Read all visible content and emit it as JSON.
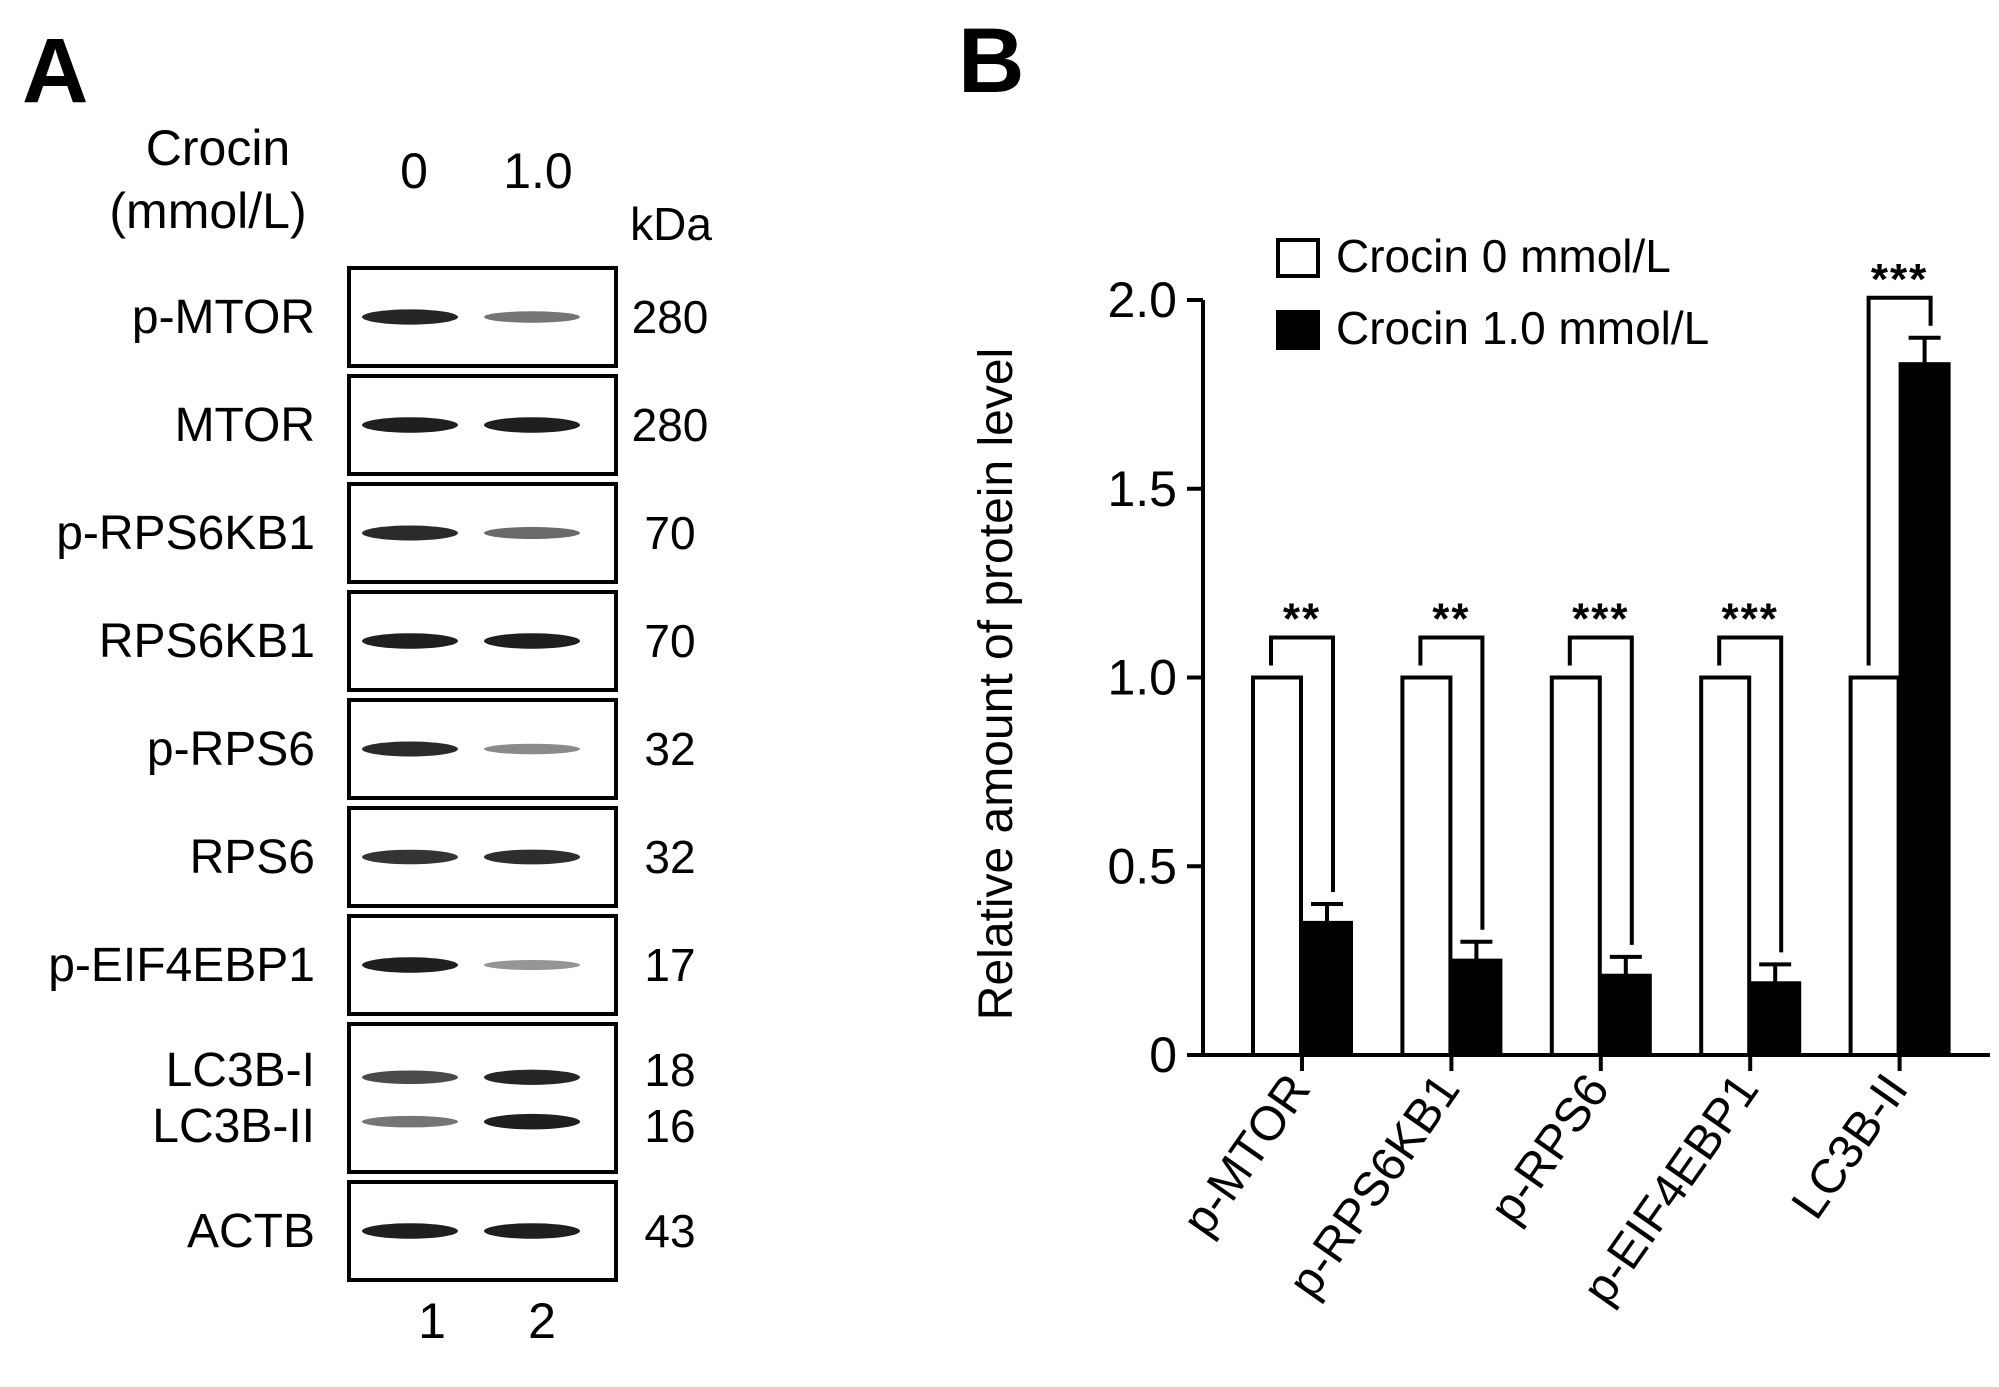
{
  "panel_a": {
    "letter": "A",
    "treatment_label_1": "Crocin",
    "treatment_label_2": "(mmol/L)",
    "dose_labels": [
      "0",
      "1.0"
    ],
    "kda_header": "kDa",
    "lane_numbers": [
      "1",
      "2"
    ],
    "blots": [
      {
        "labels": [
          "p-MTOR"
        ],
        "kda": [
          "280"
        ],
        "bands": [
          [
            0.92,
            0.55
          ]
        ]
      },
      {
        "labels": [
          "MTOR"
        ],
        "kda": [
          "280"
        ],
        "bands": [
          [
            0.95,
            0.95
          ]
        ]
      },
      {
        "labels": [
          "p-RPS6KB1"
        ],
        "kda": [
          "70"
        ],
        "bands": [
          [
            0.9,
            0.6
          ]
        ]
      },
      {
        "labels": [
          "RPS6KB1"
        ],
        "kda": [
          "70"
        ],
        "bands": [
          [
            0.95,
            0.95
          ]
        ]
      },
      {
        "labels": [
          "p-RPS6"
        ],
        "kda": [
          "32"
        ],
        "bands": [
          [
            0.9,
            0.45
          ]
        ]
      },
      {
        "labels": [
          "RPS6"
        ],
        "kda": [
          "32"
        ],
        "bands": [
          [
            0.85,
            0.88
          ]
        ]
      },
      {
        "labels": [
          "p-EIF4EBP1"
        ],
        "kda": [
          "17"
        ],
        "bands": [
          [
            0.95,
            0.4
          ]
        ]
      },
      {
        "labels": [
          "LC3B-I",
          "LC3B-II"
        ],
        "kda": [
          "18",
          "16"
        ],
        "bands": [
          [
            0.75,
            0.92
          ],
          [
            0.55,
            0.95
          ]
        ]
      },
      {
        "labels": [
          "ACTB"
        ],
        "kda": [
          "43"
        ],
        "bands": [
          [
            0.95,
            0.95
          ]
        ]
      }
    ]
  },
  "panel_b": {
    "letter": "B"
  },
  "chart_data": {
    "type": "bar",
    "title": "",
    "xlabel": "",
    "ylabel": "Relative amount of protein level",
    "ylim": [
      0,
      2.0
    ],
    "yticks": [
      "0",
      "0.5",
      "1.0",
      "1.5",
      "2.0"
    ],
    "ytick_values": [
      0,
      0.5,
      1.0,
      1.5,
      2.0
    ],
    "categories": [
      "p-MTOR",
      "p-RPS6KB1",
      "p-RPS6",
      "p-EIF4EBP1",
      "LC3B-II"
    ],
    "series": [
      {
        "name": "Crocin 0 mmol/L",
        "color": "#ffffff",
        "values": [
          1.0,
          1.0,
          1.0,
          1.0,
          1.0
        ],
        "errors": [
          0,
          0,
          0,
          0,
          0
        ]
      },
      {
        "name": "Crocin 1.0 mmol/L",
        "color": "#000000",
        "values": [
          0.35,
          0.25,
          0.21,
          0.19,
          1.83
        ],
        "errors": [
          0.05,
          0.05,
          0.05,
          0.05,
          0.07
        ]
      }
    ],
    "significance": [
      "**",
      "**",
      "***",
      "***",
      "***"
    ],
    "legend_position": "top-left",
    "grid": false
  }
}
